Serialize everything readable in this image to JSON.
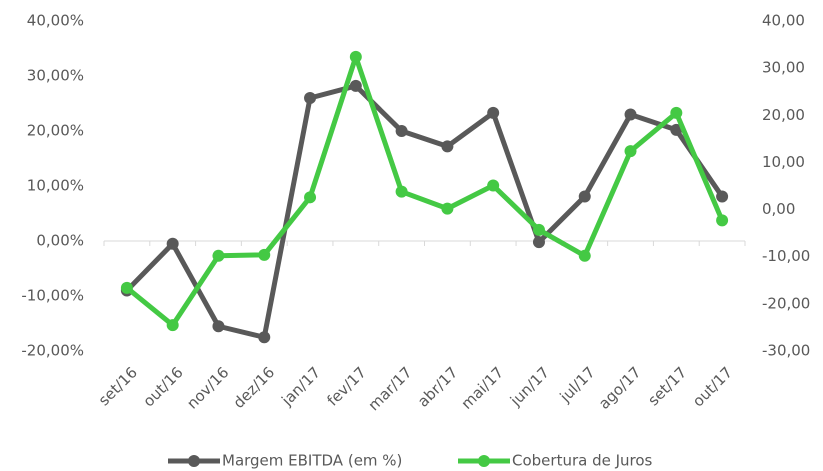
{
  "chart_data": {
    "type": "line",
    "categories": [
      "set/16",
      "out/16",
      "nov/16",
      "dez/16",
      "jan/17",
      "fev/17",
      "mar/17",
      "abr/17",
      "mai/17",
      "jun/17",
      "jul/17",
      "ago/17",
      "set/17",
      "out/17"
    ],
    "series": [
      {
        "name": "Margem EBITDA (em %)",
        "color": "#595959",
        "values": [
          -9.0,
          -0.5,
          -15.5,
          -17.5,
          26.0,
          28.2,
          20.0,
          17.2,
          23.3,
          -0.2,
          8.1,
          23.0,
          20.2,
          8.1
        ]
      },
      {
        "name": "Cobertura de Juros",
        "color": "#44c944",
        "axis": "y2",
        "values": [
          -16.6,
          -24.5,
          -9.8,
          -9.6,
          2.6,
          32.4,
          3.8,
          0.2,
          5.1,
          -4.3,
          -9.8,
          12.4,
          20.5,
          -2.3
        ]
      }
    ],
    "ylim": [
      -20,
      40
    ],
    "yticks": [
      {
        "value": -20,
        "label": "-20,00%"
      },
      {
        "value": -10,
        "label": "-10,00%"
      },
      {
        "value": 0,
        "label": "0,00%"
      },
      {
        "value": 10,
        "label": "10,00%"
      },
      {
        "value": 20,
        "label": "20,00%"
      },
      {
        "value": 30,
        "label": "30,00%"
      },
      {
        "value": 40,
        "label": "40,00%"
      }
    ],
    "y2lim": [
      -30,
      40
    ],
    "y2ticks": [
      {
        "value": -30,
        "label": "-30,00"
      },
      {
        "value": -20,
        "label": "-20,00"
      },
      {
        "value": -10,
        "label": "-10,00"
      },
      {
        "value": 0,
        "label": "0,00"
      },
      {
        "value": 10,
        "label": "10,00"
      },
      {
        "value": 20,
        "label": "20,00"
      },
      {
        "value": 30,
        "label": "30,00"
      },
      {
        "value": 40,
        "label": "40,00"
      }
    ],
    "grid": false,
    "legend": "bottom"
  }
}
